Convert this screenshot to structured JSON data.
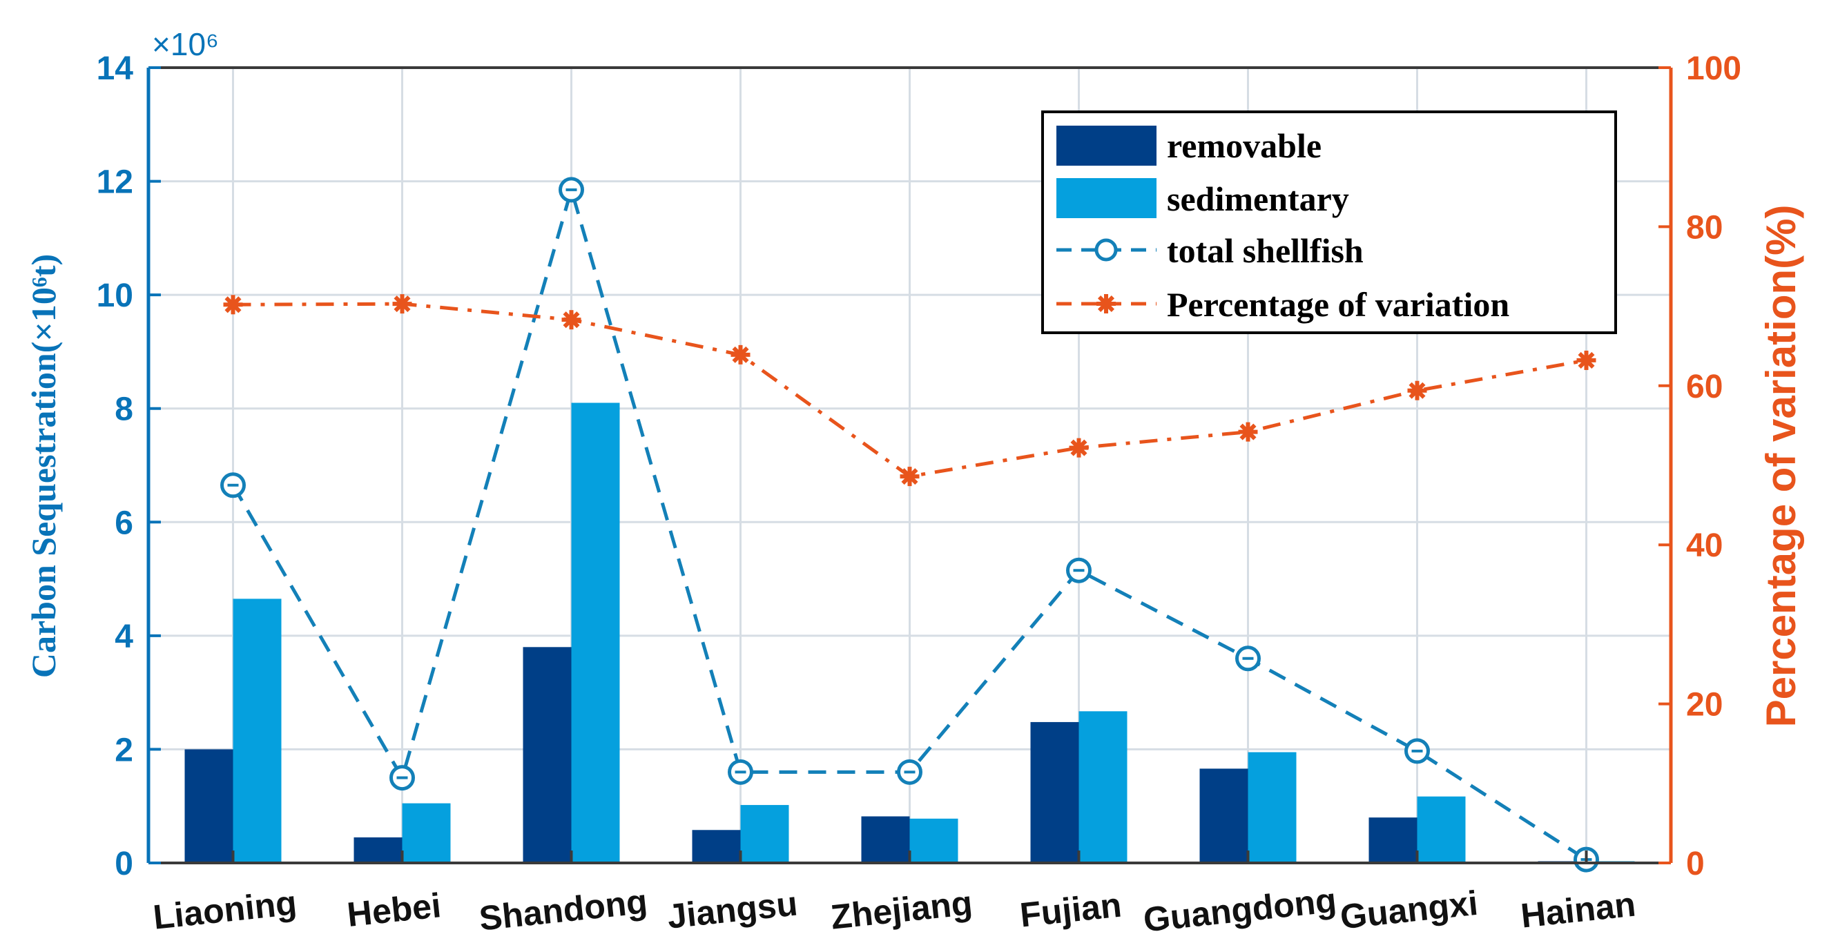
{
  "chart_data": {
    "type": "bar",
    "categories": [
      "Liaoning",
      "Hebei",
      "Shandong",
      "Jiangsu",
      "Zhejiang",
      "Fujian",
      "Guangdong",
      "Guangxi",
      "Hainan"
    ],
    "series": [
      {
        "name": "removable",
        "kind": "bar",
        "axis": "left",
        "color": "#003f87",
        "values": [
          2.0,
          0.45,
          3.8,
          0.58,
          0.82,
          2.48,
          1.66,
          0.8,
          0.03
        ]
      },
      {
        "name": "sedimentary",
        "kind": "bar",
        "axis": "left",
        "color": "#05a0de",
        "values": [
          4.65,
          1.05,
          8.1,
          1.02,
          0.78,
          2.67,
          1.95,
          1.17,
          0.03
        ]
      },
      {
        "name": "total shellfish",
        "kind": "line",
        "axis": "left",
        "color": "#1380b8",
        "marker": "circle",
        "values": [
          6.65,
          1.5,
          11.85,
          1.6,
          1.6,
          5.15,
          3.6,
          1.97,
          0.06
        ]
      },
      {
        "name": "Percentage of variation",
        "kind": "line",
        "axis": "right",
        "color": "#e8541c",
        "marker": "asterisk",
        "values": [
          70.2,
          70.3,
          68.3,
          63.9,
          48.6,
          52.2,
          54.2,
          59.4,
          63.2
        ]
      }
    ],
    "left_axis": {
      "label": "Carbon Sequestration(×10⁶t)",
      "min": 0,
      "max": 14,
      "ticks": [
        "0",
        "2",
        "4",
        "6",
        "8",
        "10",
        "12",
        "14"
      ],
      "multiplier": "×10⁶",
      "color": "#0873b8"
    },
    "right_axis": {
      "label": "Percentage of variation(%)",
      "min": 0,
      "max": 100,
      "ticks": [
        "0",
        "20",
        "40",
        "60",
        "80",
        "100"
      ],
      "color": "#e8541c"
    },
    "grid": true,
    "legend_position": "top-right"
  }
}
